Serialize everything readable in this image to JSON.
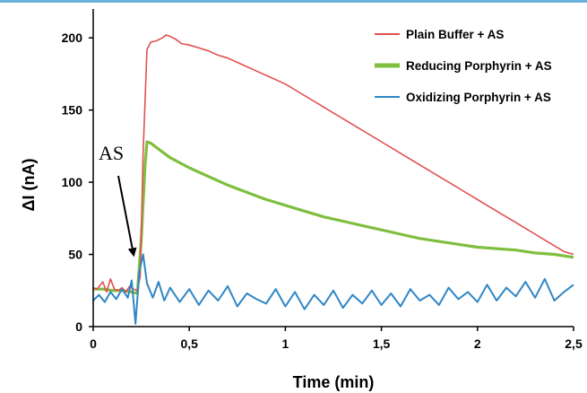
{
  "chart_data": {
    "type": "line",
    "xlabel": "Time (min)",
    "ylabel": "ΔI (nA)",
    "xlim": [
      0,
      2.5
    ],
    "ylim": [
      0,
      220
    ],
    "x_ticks": [
      "0",
      "0,5",
      "1",
      "1,5",
      "2",
      "2,5"
    ],
    "x_tick_values": [
      0,
      0.5,
      1,
      1.5,
      2,
      2.5
    ],
    "y_ticks": [
      "0",
      "50",
      "100",
      "150",
      "200"
    ],
    "y_tick_values": [
      0,
      50,
      100,
      150,
      200
    ],
    "grid": false,
    "legend": "top-right",
    "annotation": {
      "text": "AS",
      "arrow_to_x": 0.22,
      "arrow_to_y": 47
    },
    "series": [
      {
        "name": "Plain Buffer + AS",
        "color": "#e0514f",
        "x": [
          0,
          0.02,
          0.05,
          0.07,
          0.09,
          0.11,
          0.13,
          0.15,
          0.17,
          0.19,
          0.21,
          0.23,
          0.245,
          0.26,
          0.28,
          0.3,
          0.33,
          0.36,
          0.38,
          0.4,
          0.43,
          0.46,
          0.5,
          0.55,
          0.6,
          0.65,
          0.7,
          0.75,
          0.8,
          0.85,
          0.9,
          0.95,
          1.0,
          1.1,
          1.2,
          1.3,
          1.4,
          1.5,
          1.6,
          1.7,
          1.8,
          1.9,
          2.0,
          2.1,
          2.2,
          2.3,
          2.4,
          2.45,
          2.5
        ],
        "y": [
          27,
          26,
          31,
          24,
          33,
          26,
          25,
          27,
          24,
          28,
          26,
          25,
          35,
          120,
          192,
          197,
          198,
          200,
          202,
          201,
          199,
          196,
          195,
          193,
          191,
          188,
          186,
          183,
          180,
          177,
          174,
          171,
          168,
          160,
          152,
          144,
          136,
          128,
          120,
          112,
          104,
          96,
          88,
          80,
          72,
          64,
          56,
          52,
          50
        ]
      },
      {
        "name": "Reducing Porphyrin + AS",
        "color": "#7fbf3f",
        "x": [
          0,
          0.05,
          0.1,
          0.15,
          0.2,
          0.23,
          0.25,
          0.27,
          0.28,
          0.3,
          0.35,
          0.4,
          0.5,
          0.6,
          0.7,
          0.8,
          0.9,
          1.0,
          1.1,
          1.2,
          1.3,
          1.4,
          1.5,
          1.6,
          1.7,
          1.8,
          1.9,
          2.0,
          2.1,
          2.2,
          2.3,
          2.4,
          2.5
        ],
        "y": [
          26,
          26,
          25,
          25,
          24,
          23,
          60,
          112,
          128,
          127,
          122,
          117,
          110,
          104,
          98,
          93,
          88,
          84,
          80,
          76,
          73,
          70,
          67,
          64,
          61,
          59,
          57,
          55,
          54,
          53,
          51,
          50,
          48
        ]
      },
      {
        "name": "Oxidizing Porphyrin + AS",
        "color": "#2f86c6",
        "x": [
          0,
          0.03,
          0.06,
          0.09,
          0.12,
          0.15,
          0.18,
          0.2,
          0.22,
          0.24,
          0.26,
          0.28,
          0.31,
          0.34,
          0.37,
          0.4,
          0.45,
          0.5,
          0.55,
          0.6,
          0.65,
          0.7,
          0.75,
          0.8,
          0.85,
          0.9,
          0.95,
          1.0,
          1.05,
          1.1,
          1.15,
          1.2,
          1.25,
          1.3,
          1.35,
          1.4,
          1.45,
          1.5,
          1.55,
          1.6,
          1.65,
          1.7,
          1.75,
          1.8,
          1.85,
          1.9,
          1.95,
          2.0,
          2.05,
          2.1,
          2.15,
          2.2,
          2.25,
          2.3,
          2.35,
          2.4,
          2.45,
          2.5
        ],
        "y": [
          18,
          22,
          17,
          24,
          19,
          26,
          20,
          32,
          2,
          38,
          50,
          30,
          20,
          31,
          18,
          27,
          17,
          26,
          15,
          25,
          18,
          28,
          14,
          23,
          19,
          16,
          26,
          14,
          24,
          12,
          22,
          15,
          25,
          13,
          22,
          16,
          25,
          15,
          23,
          14,
          26,
          18,
          22,
          15,
          27,
          19,
          24,
          17,
          29,
          18,
          27,
          21,
          31,
          20,
          33,
          18,
          24,
          29
        ]
      }
    ]
  }
}
